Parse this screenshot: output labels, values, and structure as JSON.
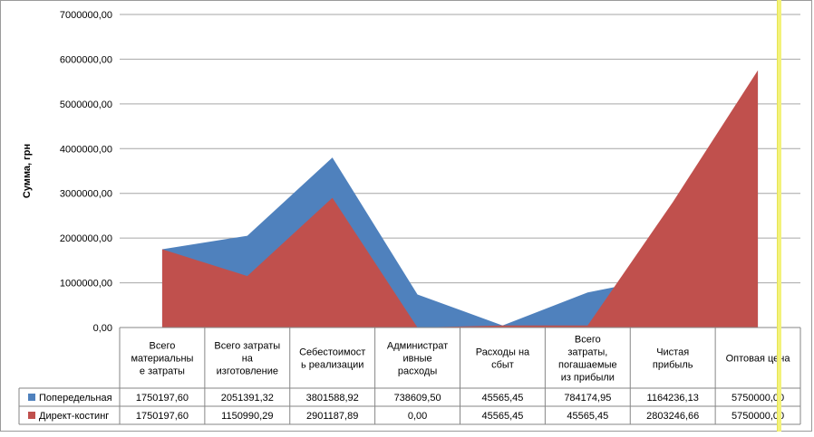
{
  "chart_data": {
    "type": "area",
    "title": "",
    "xlabel": "",
    "ylabel": "Сумма, грн",
    "ylim": [
      0,
      7000000
    ],
    "yticks": [
      {
        "value": 0,
        "label": "0,00"
      },
      {
        "value": 1000000,
        "label": "1000000,00"
      },
      {
        "value": 2000000,
        "label": "2000000,00"
      },
      {
        "value": 3000000,
        "label": "3000000,00"
      },
      {
        "value": 4000000,
        "label": "4000000,00"
      },
      {
        "value": 5000000,
        "label": "5000000,00"
      },
      {
        "value": 6000000,
        "label": "6000000,00"
      },
      {
        "value": 7000000,
        "label": "7000000,00"
      }
    ],
    "grid": true,
    "legend": "table-left",
    "categories": [
      [
        "Всего",
        "материальны",
        "е затраты"
      ],
      [
        "Всего затраты",
        "на",
        "изготовление"
      ],
      [
        "Себестоимост",
        "ь реализации"
      ],
      [
        "Администрат",
        "ивные",
        "расходы"
      ],
      [
        "Расходы на",
        "сбыт"
      ],
      [
        "Всего",
        "затраты,",
        "погашаемые",
        "из прибыли"
      ],
      [
        "Чистая",
        "прибыль"
      ],
      [
        "Оптовая цена"
      ]
    ],
    "series": [
      {
        "name": "Попередельная",
        "color": "#4f81bd",
        "values": [
          1750197.6,
          2051391.32,
          3801588.92,
          738609.5,
          45565.45,
          784174.95,
          1164236.13,
          5750000.0
        ],
        "labels": [
          "1750197,60",
          "2051391,32",
          "3801588,92",
          "738609,50",
          "45565,45",
          "784174,95",
          "1164236,13",
          "5750000,00"
        ]
      },
      {
        "name": "Директ-костинг",
        "color": "#c0504d",
        "values": [
          1750197.6,
          1150990.29,
          2901187.89,
          0.0,
          45565.45,
          45565.45,
          2803246.66,
          5750000.0
        ],
        "labels": [
          "1750197,60",
          "1150990,29",
          "2901187,89",
          "0,00",
          "45565,45",
          "45565,45",
          "2803246,66",
          "5750000,00"
        ]
      }
    ]
  }
}
